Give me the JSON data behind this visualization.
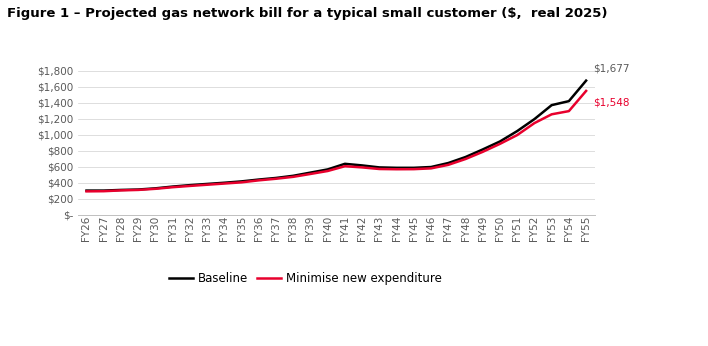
{
  "title": "Figure 1 – Projected gas network bill for a typical small customer ($,  real 2025)",
  "years": [
    "FY26",
    "FY27",
    "FY28",
    "FY29",
    "FY30",
    "FY31",
    "FY32",
    "FY33",
    "FY34",
    "FY35",
    "FY36",
    "FY37",
    "FY38",
    "FY39",
    "FY40",
    "FY41",
    "FY42",
    "FY43",
    "FY44",
    "FY45",
    "FY46",
    "FY47",
    "FY48",
    "FY49",
    "FY50",
    "FY51",
    "FY52",
    "FY53",
    "FY54",
    "FY55"
  ],
  "baseline": [
    300,
    300,
    308,
    313,
    328,
    350,
    368,
    383,
    398,
    415,
    438,
    458,
    485,
    525,
    565,
    635,
    615,
    590,
    585,
    585,
    595,
    645,
    720,
    815,
    915,
    1045,
    1195,
    1370,
    1420,
    1677
  ],
  "minimise": [
    290,
    292,
    302,
    308,
    322,
    342,
    358,
    373,
    388,
    403,
    428,
    448,
    472,
    508,
    545,
    605,
    590,
    570,
    567,
    568,
    578,
    622,
    695,
    785,
    885,
    995,
    1145,
    1255,
    1295,
    1548
  ],
  "baseline_color": "#000000",
  "minimise_color": "#e8002d",
  "baseline_label": "Baseline",
  "minimise_label": "Minimise new expenditure",
  "baseline_end_label": "$1,677",
  "minimise_end_label": "$1,548",
  "yticks": [
    0,
    200,
    400,
    600,
    800,
    1000,
    1200,
    1400,
    1600,
    1800
  ],
  "ytick_labels": [
    "$-",
    "$200",
    "$400",
    "$600",
    "$800",
    "$1,000",
    "$1,200",
    "$1,400",
    "$1,600",
    "$1,800"
  ],
  "ylim": [
    0,
    1950
  ],
  "background_color": "#ffffff",
  "end_label_color_baseline": "#5a5a5a",
  "end_label_color_minimise": "#e8002d",
  "title_fontsize": 9.5,
  "tick_fontsize": 7.5,
  "legend_fontsize": 8.5,
  "line_width": 1.8
}
